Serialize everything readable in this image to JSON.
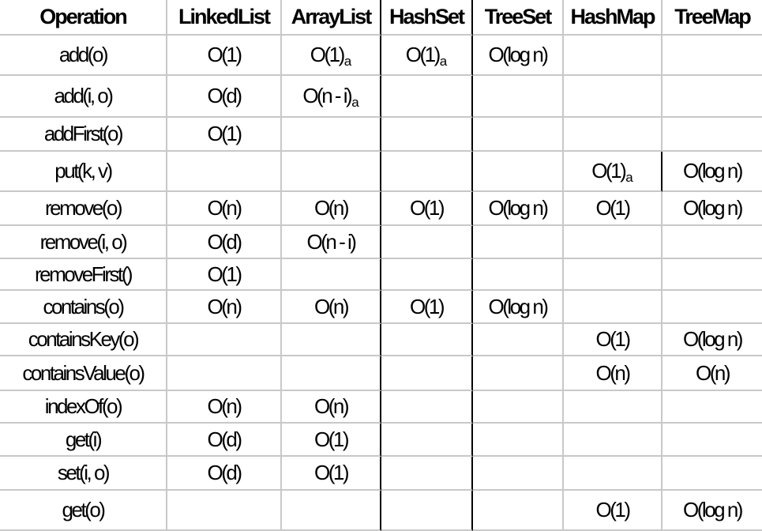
{
  "table": {
    "headers": [
      "Operation",
      "LinkedList",
      "ArrayList",
      "HashSet",
      "TreeSet",
      "HashMap",
      "TreeMap"
    ],
    "rows": [
      {
        "op": "add(o)",
        "LinkedList": "O(1)",
        "ArrayList": "O(1)",
        "ArrayList_sub": "a",
        "HashSet": "O(1)",
        "HashSet_sub": "a",
        "TreeSet": "O(log n)",
        "HashMap": "",
        "TreeMap": ""
      },
      {
        "op": "add(i, o)",
        "LinkedList": "O(d)",
        "ArrayList": "O(n - i)",
        "ArrayList_sub": "a",
        "HashSet": "",
        "TreeSet": "",
        "HashMap": "",
        "TreeMap": ""
      },
      {
        "op": "addFirst(o)",
        "LinkedList": "O(1)",
        "ArrayList": "",
        "HashSet": "",
        "TreeSet": "",
        "HashMap": "",
        "TreeMap": ""
      },
      {
        "op": "put(k, v)",
        "LinkedList": "",
        "ArrayList": "",
        "HashSet": "",
        "TreeSet": "",
        "HashMap": "O(1)",
        "HashMap_sub": "a",
        "TreeMap": "O(log n)"
      },
      {
        "op": "remove(o)",
        "LinkedList": "O(n)",
        "ArrayList": "O(n)",
        "HashSet": "O(1)",
        "TreeSet": "O(log n)",
        "HashMap": "O(1)",
        "TreeMap": "O(log n)"
      },
      {
        "op": "remove(i, o)",
        "LinkedList": "O(d)",
        "ArrayList": "O(n - i)",
        "HashSet": "",
        "TreeSet": "",
        "HashMap": "",
        "TreeMap": ""
      },
      {
        "op": "removeFirst()",
        "LinkedList": "O(1)",
        "ArrayList": "",
        "HashSet": "",
        "TreeSet": "",
        "HashMap": "",
        "TreeMap": ""
      },
      {
        "op": "contains(o)",
        "LinkedList": "O(n)",
        "ArrayList": "O(n)",
        "HashSet": "O(1)",
        "TreeSet": "O(log n)",
        "HashMap": "",
        "TreeMap": ""
      },
      {
        "op": "containsKey(o)",
        "LinkedList": "",
        "ArrayList": "",
        "HashSet": "",
        "TreeSet": "",
        "HashMap": "O(1)",
        "TreeMap": "O(log n)"
      },
      {
        "op": "containsValue(o)",
        "LinkedList": "",
        "ArrayList": "",
        "HashSet": "",
        "TreeSet": "",
        "HashMap": "O(n)",
        "TreeMap": "O(n)"
      },
      {
        "op": "indexOf(o)",
        "LinkedList": "O(n)",
        "ArrayList": "O(n)",
        "HashSet": "",
        "TreeSet": "",
        "HashMap": "",
        "TreeMap": ""
      },
      {
        "op": "get(i)",
        "LinkedList": "O(d)",
        "ArrayList": "O(1)",
        "HashSet": "",
        "TreeSet": "",
        "HashMap": "",
        "TreeMap": ""
      },
      {
        "op": "set(i, o)",
        "LinkedList": "O(d)",
        "ArrayList": "O(1)",
        "HashSet": "",
        "TreeSet": "",
        "HashMap": "",
        "TreeMap": ""
      },
      {
        "op": "get(o)",
        "LinkedList": "",
        "ArrayList": "",
        "HashSet": "",
        "TreeSet": "",
        "HashMap": "O(1)",
        "TreeMap": "O(log n)"
      }
    ]
  }
}
